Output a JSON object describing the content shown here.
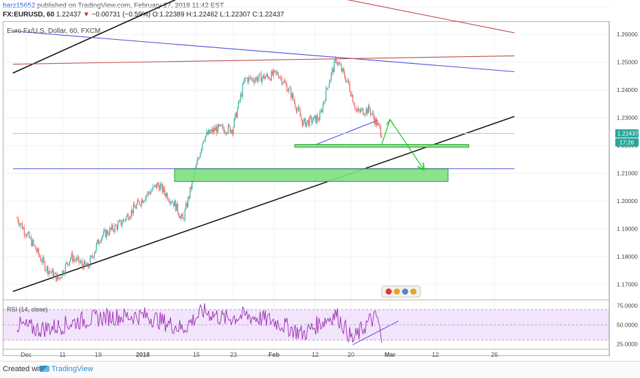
{
  "header": {
    "user": "barz15652",
    "published": " published on TradingView.com, February 27, 2018 11:42 EST",
    "ticker": "FX:EURUSD, 60",
    "last": "1.22437",
    "arrow": "▼",
    "change": "−0.00731 (−0.59%)",
    "ohlc": "O:1.22389 H:1.22462 L:1.22307 C:1.22437"
  },
  "symbol_label": "Euro Fx/U.S. Dollar, 60, FXCM",
  "rsi_label": "RSI (14, close)",
  "footer": {
    "created": "Created with",
    "logo": "TradingView"
  },
  "colors": {
    "up": "#26a69a",
    "down": "#ef5350",
    "zone_fill": "#7fe07f",
    "zone_border": "#2e9e2e",
    "rsi_line": "#9c27b0",
    "rsi_band": "#f1e4fb",
    "trend_blue": "#4a4ed8",
    "trend_red": "#c24a4a",
    "arrow": "#22cc22"
  },
  "chart_data": {
    "type": "candlestick",
    "price_axis": {
      "ticks": [
        "1.26000",
        "1.25000",
        "1.24000",
        "1.23000",
        "1.22000",
        "1.21000",
        "1.20000",
        "1.19000",
        "1.18000",
        "1.17000"
      ],
      "range": [
        1.1645,
        1.2645
      ]
    },
    "last_price_label": "1.22437",
    "countdown_label": "17:26",
    "time_axis": [
      "Dec",
      "11",
      "19",
      "2018",
      "15",
      "23",
      "Feb",
      "12",
      "20",
      "Mar",
      "12",
      "26"
    ],
    "rsi_axis": {
      "ticks": [
        "75.0000",
        "50.0000",
        "25.0000"
      ],
      "range": [
        20,
        80
      ],
      "band": [
        30,
        70
      ]
    },
    "price_path": [
      [
        "2017-12-01",
        1.194
      ],
      [
        "2017-12-05",
        1.184
      ],
      [
        "2017-12-08",
        1.176
      ],
      [
        "2017-12-11",
        1.172
      ],
      [
        "2017-12-14",
        1.18
      ],
      [
        "2017-12-18",
        1.176
      ],
      [
        "2017-12-21",
        1.187
      ],
      [
        "2017-12-26",
        1.192
      ],
      [
        "2018-01-01",
        1.202
      ],
      [
        "2018-01-04",
        1.206
      ],
      [
        "2018-01-08",
        1.199
      ],
      [
        "2018-01-10",
        1.193
      ],
      [
        "2018-01-12",
        1.205
      ],
      [
        "2018-01-15",
        1.223
      ],
      [
        "2018-01-18",
        1.226
      ],
      [
        "2018-01-22",
        1.226
      ],
      [
        "2018-01-25",
        1.244
      ],
      [
        "2018-01-27",
        1.244
      ],
      [
        "2018-01-31",
        1.245
      ],
      [
        "2018-02-02",
        1.246
      ],
      [
        "2018-02-05",
        1.239
      ],
      [
        "2018-02-08",
        1.228
      ],
      [
        "2018-02-12",
        1.23
      ],
      [
        "2018-02-14",
        1.242
      ],
      [
        "2018-02-16",
        1.251
      ],
      [
        "2018-02-19",
        1.242
      ],
      [
        "2018-02-21",
        1.232
      ],
      [
        "2018-02-24",
        1.233
      ],
      [
        "2018-02-27",
        1.2244
      ]
    ],
    "rsi_path": [
      [
        "2017-12-01",
        50
      ],
      [
        "2017-12-06",
        44
      ],
      [
        "2017-12-11",
        48
      ],
      [
        "2017-12-16",
        55
      ],
      [
        "2017-12-22",
        60
      ],
      [
        "2018-01-01",
        62
      ],
      [
        "2018-01-10",
        45
      ],
      [
        "2018-01-15",
        68
      ],
      [
        "2018-01-20",
        58
      ],
      [
        "2018-01-25",
        62
      ],
      [
        "2018-02-01",
        55
      ],
      [
        "2018-02-08",
        38
      ],
      [
        "2018-02-12",
        52
      ],
      [
        "2018-02-16",
        64
      ],
      [
        "2018-02-20",
        30
      ],
      [
        "2018-02-24",
        55
      ],
      [
        "2018-02-26",
        60
      ],
      [
        "2018-02-27",
        25
      ]
    ],
    "zones": [
      {
        "x": [
          "2018-02-06",
          "2018-03-20"
        ],
        "y": [
          1.2196,
          1.2204
        ]
      },
      {
        "x": [
          "2018-01-08",
          "2018-03-15"
        ],
        "y": [
          1.2071,
          1.2116
        ]
      }
    ],
    "lines": [
      {
        "color": "black",
        "points": [
          [
            "2017-11-30",
            1.1675
          ],
          [
            "2018-03-31",
            1.2305
          ]
        ]
      },
      {
        "color": "black",
        "points": [
          [
            "2017-11-30",
            1.2461
          ],
          [
            "2018-01-21",
            1.2811
          ]
        ]
      },
      {
        "color": "blue",
        "points": [
          [
            "2017-11-30",
            1.2612
          ],
          [
            "2018-03-31",
            1.2466
          ]
        ]
      },
      {
        "color": "red",
        "points": [
          [
            "2017-11-30",
            1.2493
          ],
          [
            "2018-03-31",
            1.2523
          ]
        ]
      },
      {
        "color": "red",
        "points": [
          [
            "2018-02-15",
            1.2736
          ],
          [
            "2018-03-31",
            1.2606
          ]
        ]
      },
      {
        "color": "blue",
        "points": [
          [
            "2018-02-11",
            1.2203
          ],
          [
            "2018-02-26",
            1.2291
          ]
        ]
      },
      {
        "color": "horizontal-blue",
        "points": [
          [
            "2017-11-30",
            1.2117
          ],
          [
            "2018-03-31",
            1.2117
          ]
        ]
      },
      {
        "color": "horizontal-teal",
        "points": [
          [
            "2017-11-30",
            1.2244
          ],
          [
            "2018-03-31",
            1.2244
          ]
        ]
      }
    ],
    "projection": [
      [
        "2018-02-27",
        1.2205
      ],
      [
        "2018-02-29",
        1.2294
      ],
      [
        "2018-03-09",
        1.2117
      ]
    ]
  }
}
